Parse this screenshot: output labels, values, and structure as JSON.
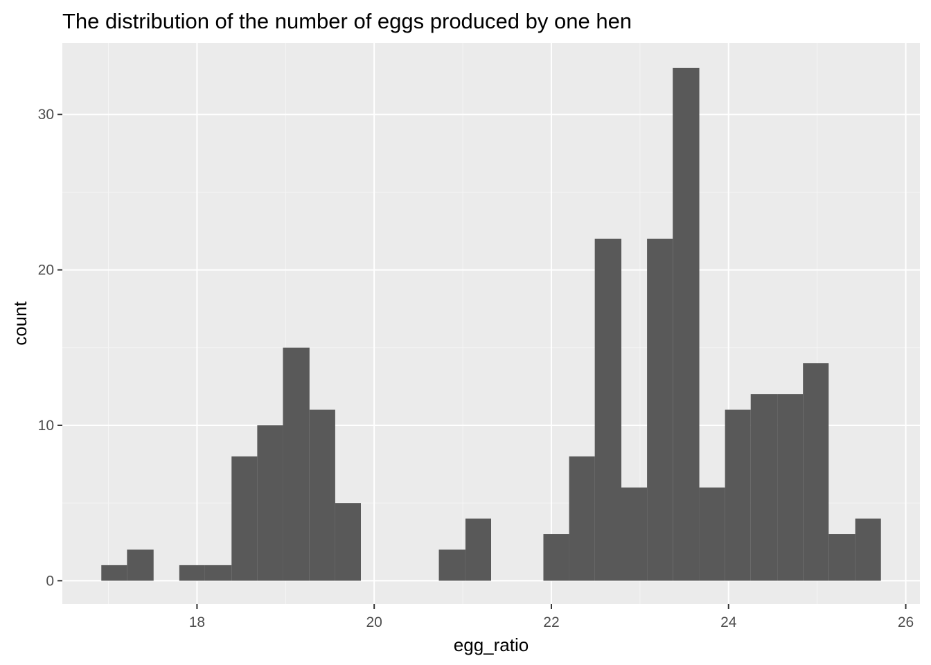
{
  "chart_data": {
    "type": "bar",
    "subtype": "histogram",
    "title": "The distribution of the number of eggs produced by one hen",
    "xlabel": "egg_ratio",
    "ylabel": "count",
    "bin_width": 0.2933,
    "bins": [
      {
        "x0": 16.92,
        "x1": 17.21,
        "count": 1
      },
      {
        "x0": 17.21,
        "x1": 17.51,
        "count": 2
      },
      {
        "x0": 17.51,
        "x1": 17.8,
        "count": 0
      },
      {
        "x0": 17.8,
        "x1": 18.09,
        "count": 1
      },
      {
        "x0": 18.09,
        "x1": 18.39,
        "count": 1
      },
      {
        "x0": 18.39,
        "x1": 18.68,
        "count": 8
      },
      {
        "x0": 18.68,
        "x1": 18.97,
        "count": 10
      },
      {
        "x0": 18.97,
        "x1": 19.27,
        "count": 15
      },
      {
        "x0": 19.27,
        "x1": 19.56,
        "count": 11
      },
      {
        "x0": 19.56,
        "x1": 19.85,
        "count": 5
      },
      {
        "x0": 19.85,
        "x1": 20.15,
        "count": 0
      },
      {
        "x0": 20.15,
        "x1": 20.44,
        "count": 0
      },
      {
        "x0": 20.44,
        "x1": 20.73,
        "count": 0
      },
      {
        "x0": 20.73,
        "x1": 21.03,
        "count": 2
      },
      {
        "x0": 21.03,
        "x1": 21.32,
        "count": 4
      },
      {
        "x0": 21.32,
        "x1": 21.61,
        "count": 0
      },
      {
        "x0": 21.61,
        "x1": 21.91,
        "count": 0
      },
      {
        "x0": 21.91,
        "x1": 22.2,
        "count": 3
      },
      {
        "x0": 22.2,
        "x1": 22.49,
        "count": 8
      },
      {
        "x0": 22.49,
        "x1": 22.79,
        "count": 22
      },
      {
        "x0": 22.79,
        "x1": 23.08,
        "count": 6
      },
      {
        "x0": 23.08,
        "x1": 23.37,
        "count": 22
      },
      {
        "x0": 23.37,
        "x1": 23.67,
        "count": 33
      },
      {
        "x0": 23.67,
        "x1": 23.96,
        "count": 6
      },
      {
        "x0": 23.96,
        "x1": 24.25,
        "count": 11
      },
      {
        "x0": 24.25,
        "x1": 24.55,
        "count": 12
      },
      {
        "x0": 24.55,
        "x1": 24.84,
        "count": 12
      },
      {
        "x0": 24.84,
        "x1": 25.13,
        "count": 14
      },
      {
        "x0": 25.13,
        "x1": 25.43,
        "count": 3
      },
      {
        "x0": 25.43,
        "x1": 25.72,
        "count": 4
      }
    ],
    "xlim": [
      16.48,
      26.16
    ],
    "ylim": [
      -1.5,
      34.6
    ],
    "xticks": [
      18,
      20,
      22,
      24,
      26
    ],
    "xtick_labels": [
      "18",
      "20",
      "22",
      "24",
      "26"
    ],
    "yticks": [
      0,
      10,
      20,
      30
    ],
    "ytick_labels": [
      "0",
      "10",
      "20",
      "30"
    ],
    "grid": true,
    "legend": "none",
    "colors": {
      "bar_fill": "#595959",
      "panel_background": "#ebebeb",
      "grid_major": "#ffffff",
      "grid_minor": "#f5f5f5",
      "tick_text": "#4d4d4d"
    }
  }
}
